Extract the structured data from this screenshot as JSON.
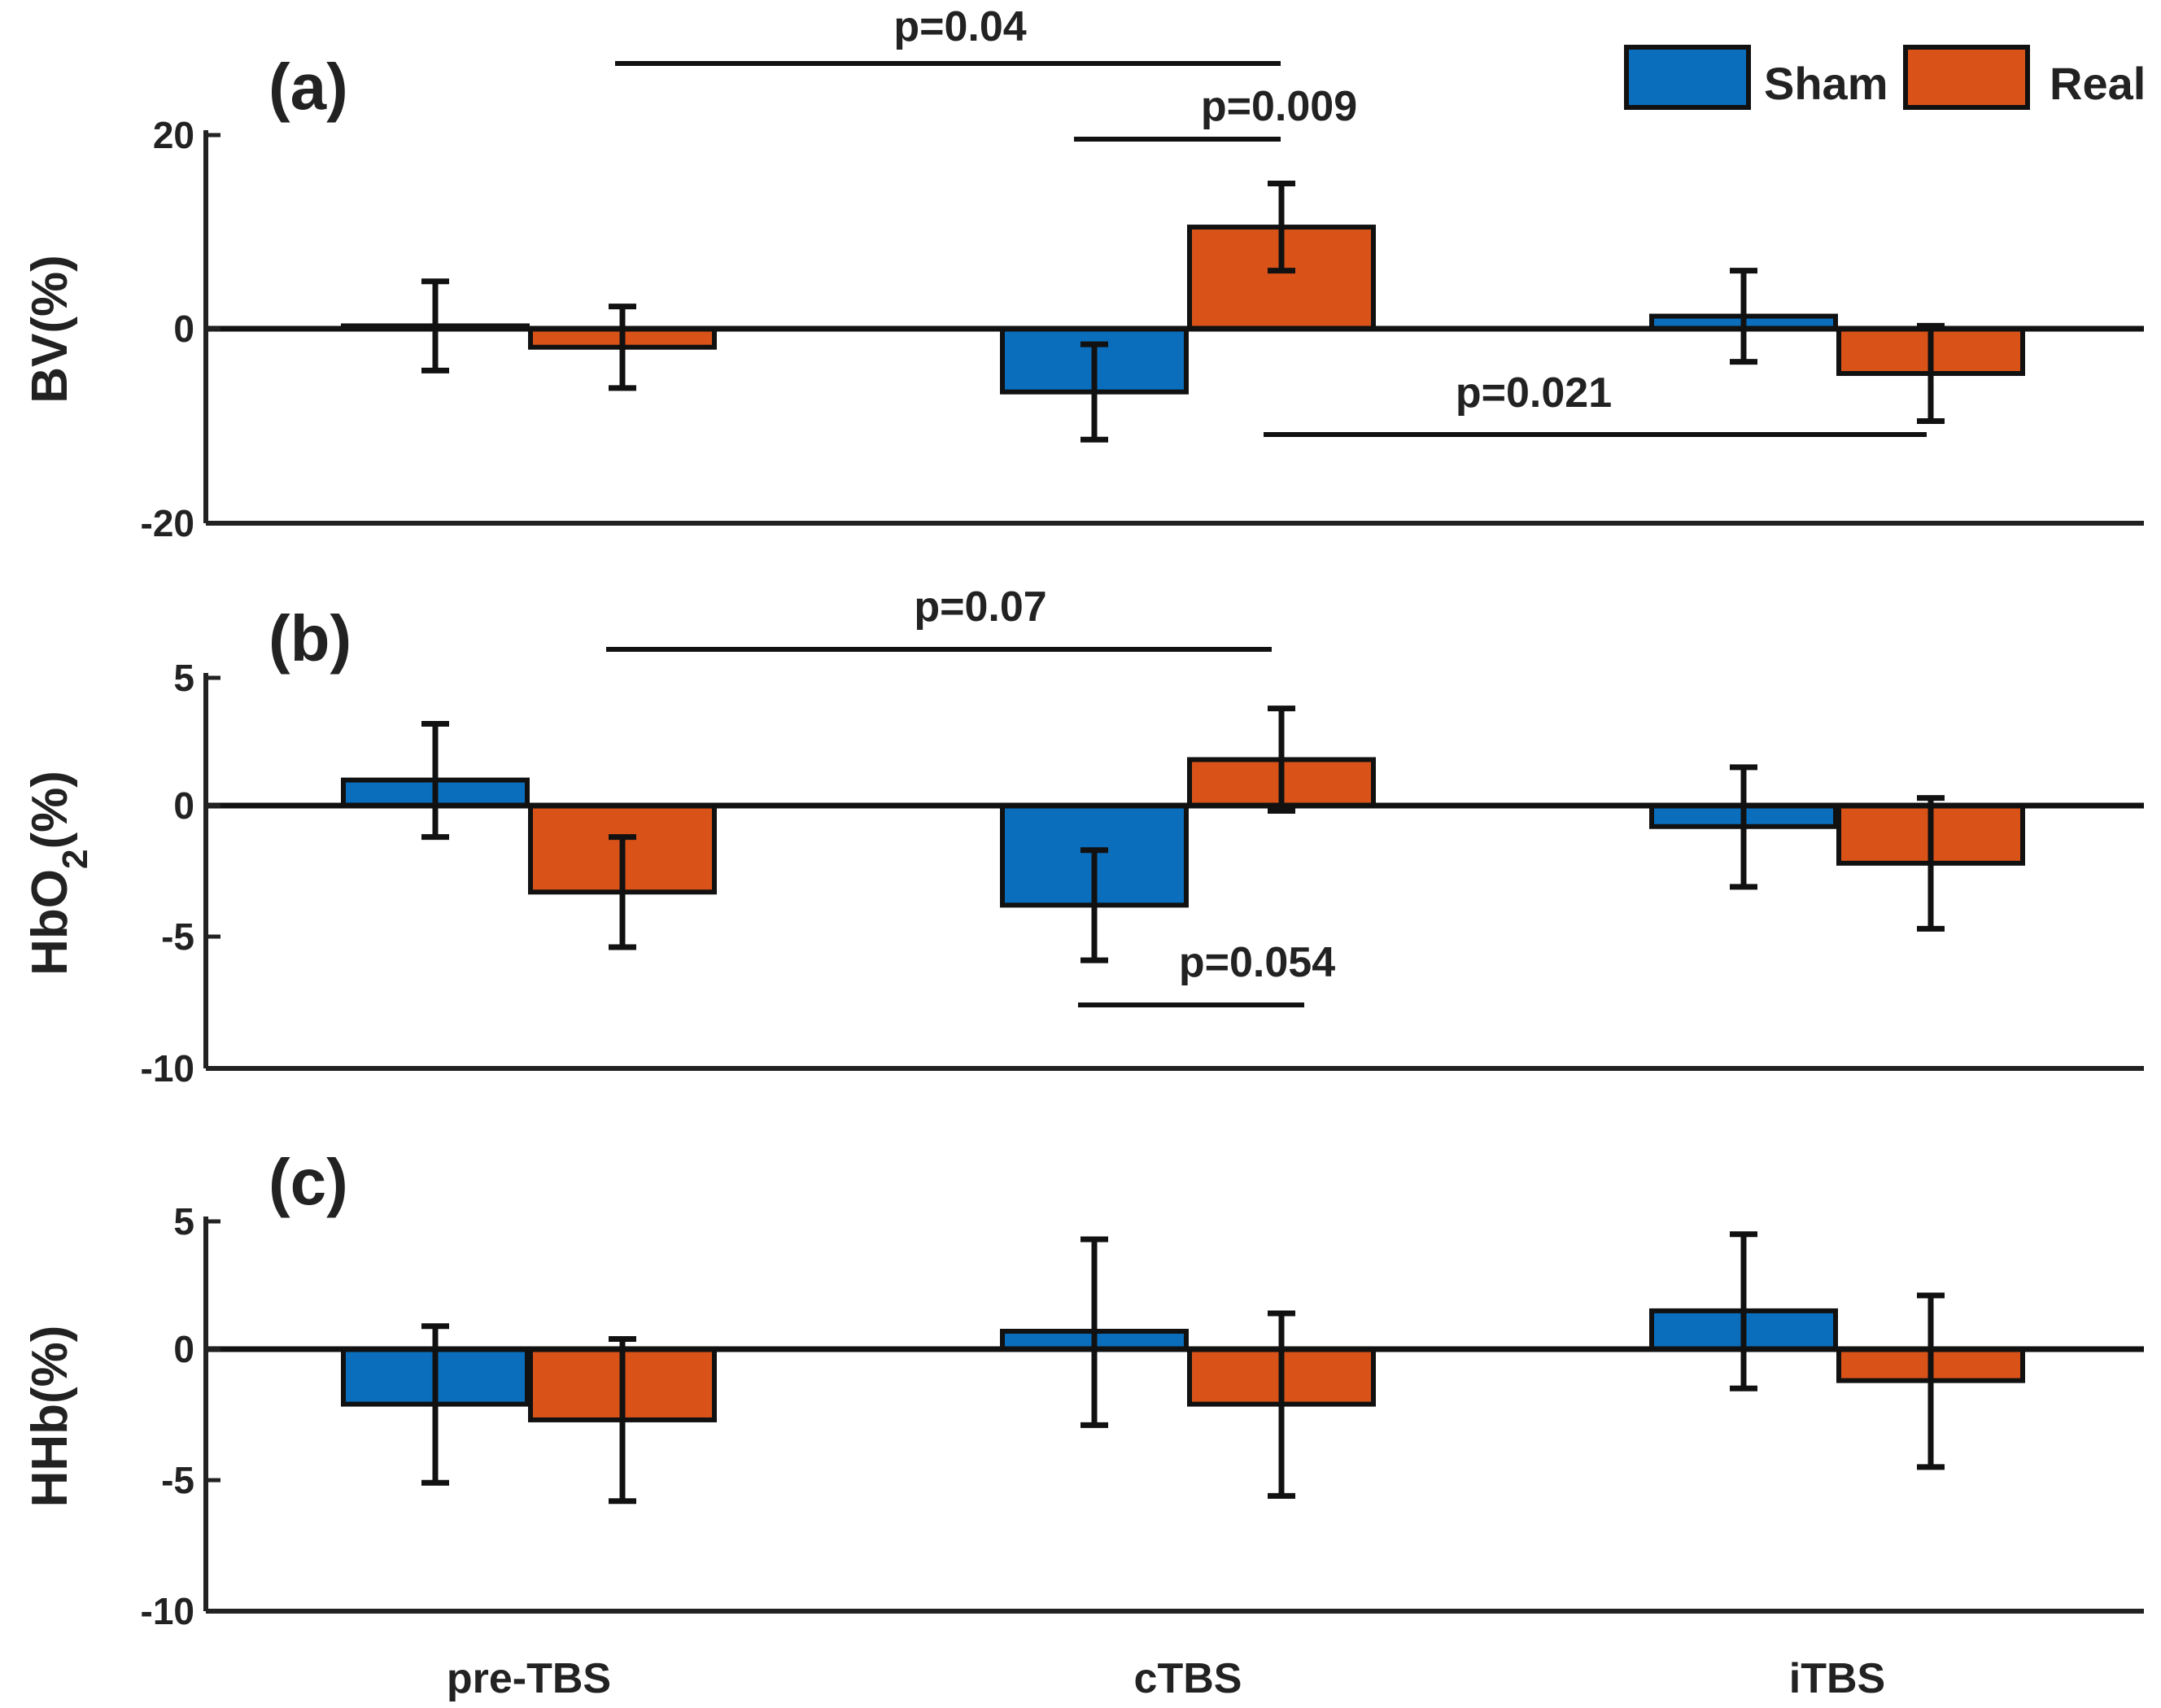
{
  "chart_data": {
    "type": "bar",
    "categories": [
      "pre-TBS",
      "cTBS",
      "iTBS"
    ],
    "legend": {
      "position": "top-right",
      "entries": [
        "Sham",
        "Real"
      ]
    },
    "colors": {
      "Sham": "#0a6ebd",
      "Real": "#d95319"
    },
    "panels": [
      {
        "label": "(a)",
        "ylabel": "BV(%)",
        "ylim": [
          -20,
          20
        ],
        "yticks": [
          "20",
          "0",
          "-20"
        ],
        "series": [
          {
            "name": "Sham",
            "values": [
              0.3,
              -6.5,
              1.3
            ],
            "errors": [
              4.6,
              4.9,
              4.7
            ]
          },
          {
            "name": "Real",
            "values": [
              -1.9,
              10.5,
              -4.6
            ],
            "errors": [
              4.2,
              4.5,
              4.9
            ]
          }
        ],
        "annotations": [
          {
            "text": "p=0.04"
          },
          {
            "text": "p=0.009"
          },
          {
            "text": "p=0.021"
          }
        ]
      },
      {
        "label": "(b)",
        "ylabel_main": "HbO",
        "ylabel_sub": "2",
        "ylabel_tail": "(%)",
        "ylim": [
          -10,
          5
        ],
        "yticks": [
          "5",
          "0",
          "-5",
          "-10"
        ],
        "series": [
          {
            "name": "Sham",
            "values": [
              1.0,
              -3.8,
              -0.8
            ],
            "errors": [
              2.2,
              2.1,
              2.3
            ]
          },
          {
            "name": "Real",
            "values": [
              -3.3,
              1.8,
              -2.2
            ],
            "errors": [
              2.1,
              2.0,
              2.5
            ]
          }
        ],
        "annotations": [
          {
            "text": "p=0.07"
          },
          {
            "text": "p=0.054"
          }
        ]
      },
      {
        "label": "(c)",
        "ylabel": "HHb(%)",
        "ylim": [
          -10,
          5
        ],
        "yticks": [
          "5",
          "0",
          "-5",
          "-10"
        ],
        "series": [
          {
            "name": "Sham",
            "values": [
              -2.1,
              0.7,
              1.5
            ],
            "errors": [
              3.0,
              3.6,
              3.0
            ]
          },
          {
            "name": "Real",
            "values": [
              -2.7,
              -2.1,
              -1.2
            ],
            "errors": [
              3.1,
              3.5,
              3.3
            ]
          }
        ],
        "annotations": []
      }
    ]
  }
}
